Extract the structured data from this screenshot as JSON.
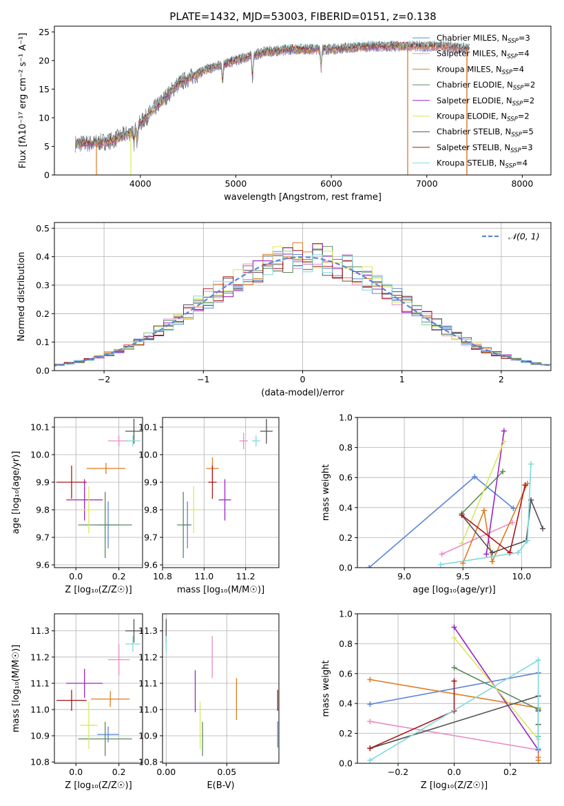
{
  "title": "PLATE=1432, MJD=53003, FIBERID=0151, z=0.138",
  "colors": {
    "Chabrier MILES": "#5b84d9",
    "Salpeter MILES": "#e88cc4",
    "Kroupa MILES": "#de7a1e",
    "Chabrier ELODIE": "#5a8a5a",
    "Salpeter ELODIE": "#9a22c6",
    "Kroupa ELODIE": "#d8e85a",
    "Chabrier STELIB": "#505050",
    "Salpeter STELIB": "#a81515",
    "Kroupa STELIB": "#7fd8dc"
  },
  "chart_data": [
    {
      "id": "spectrum",
      "type": "line",
      "xlabel": "wavelength [Angstrom, rest frame]",
      "ylabel": "Flux [fλ10⁻¹⁷ erg cm⁻² s⁻¹ A⁻¹]",
      "xlim": [
        3100,
        8300
      ],
      "ylim": [
        0,
        26
      ],
      "xticks": [
        4000,
        5000,
        6000,
        7000,
        8000
      ],
      "yticks": [
        0,
        5,
        10,
        15,
        20,
        25
      ],
      "legend_position": "upper right",
      "legend": [
        {
          "label": "Chabrier MILES, N_SSP=3",
          "base": "Chabrier MILES, N",
          "sub": "SSP",
          "tail": "=3",
          "model": "Chabrier MILES"
        },
        {
          "label": "Salpeter MILES, N_SSP=4",
          "base": "Salpeter MILES, N",
          "sub": "SSP",
          "tail": "=4",
          "model": "Salpeter MILES"
        },
        {
          "label": "Kroupa MILES, N_SSP=4",
          "base": "Kroupa MILES, N",
          "sub": "SSP",
          "tail": "=4",
          "model": "Kroupa MILES"
        },
        {
          "label": "Chabrier ELODIE, N_SSP=2",
          "base": "Chabrier ELODIE, N",
          "sub": "SSP",
          "tail": "=2",
          "model": "Chabrier ELODIE"
        },
        {
          "label": "Salpeter ELODIE, N_SSP=2",
          "base": "Salpeter ELODIE, N",
          "sub": "SSP",
          "tail": "=2",
          "model": "Salpeter ELODIE"
        },
        {
          "label": "Kroupa ELODIE, N_SSP=2",
          "base": "Kroupa ELODIE, N",
          "sub": "SSP",
          "tail": "=2",
          "model": "Kroupa ELODIE"
        },
        {
          "label": "Chabrier STELIB, N_SSP=5",
          "base": "Chabrier STELIB, N",
          "sub": "SSP",
          "tail": "=5",
          "model": "Chabrier STELIB"
        },
        {
          "label": "Salpeter STELIB, N_SSP=3",
          "base": "Salpeter STELIB, N",
          "sub": "SSP",
          "tail": "=3",
          "model": "Salpeter STELIB"
        },
        {
          "label": "Kroupa STELIB, N_SSP=4",
          "base": "Kroupa STELIB, N",
          "sub": "SSP",
          "tail": "=4",
          "model": "Kroupa STELIB"
        }
      ],
      "continuum_shape": {
        "x": [
          3320,
          3500,
          3700,
          3900,
          4000,
          4200,
          4400,
          4700,
          5000,
          5300,
          5600,
          6000,
          6400,
          6800,
          7200,
          7450
        ],
        "y": [
          5.5,
          5.5,
          6.0,
          7.5,
          9.0,
          12.5,
          16.0,
          18.5,
          20.0,
          21.5,
          22.0,
          22.0,
          22.5,
          22.5,
          22.5,
          22.0
        ]
      },
      "absorption_features": [
        {
          "x": 3933,
          "depth": 2.5
        },
        {
          "x": 3968,
          "depth": 2.5
        },
        {
          "x": 4861,
          "depth": 3.0
        },
        {
          "x": 5175,
          "depth": 4.0
        },
        {
          "x": 5893,
          "depth": 3.5
        }
      ],
      "model_drops": [
        {
          "model": "Kroupa MILES",
          "x": 3540
        },
        {
          "model": "Kroupa ELODIE",
          "x": 3900
        },
        {
          "model": "Salpeter MILES",
          "x": 6800
        },
        {
          "model": "Kroupa MILES",
          "x": 6800
        },
        {
          "model": "Salpeter STELIB",
          "x": 7420
        },
        {
          "model": "Kroupa MILES",
          "x": 7420
        }
      ],
      "model_end_x": {
        "MILES": 7400,
        "ELODIE": 6800,
        "STELIB": 7450
      }
    },
    {
      "id": "residuals",
      "type": "histogram",
      "xlabel": "(data-model)/error",
      "ylabel": "Normed distribution",
      "xlim": [
        -2.5,
        2.5
      ],
      "ylim": [
        0,
        0.52
      ],
      "xticks": [
        -2,
        -1,
        0,
        1,
        2
      ],
      "yticks": [
        0.0,
        0.1,
        0.2,
        0.3,
        0.4,
        0.5
      ],
      "bin_width": 0.1,
      "grid": true,
      "reference": {
        "label": "𝒩(0, 1)",
        "mu": 0,
        "sigma": 1,
        "color": "#5b84d9",
        "style": "dashed"
      },
      "legend_position": "upper right"
    },
    {
      "id": "age_vs_Z",
      "type": "errorbar",
      "xlabel": "Z [log₁₀(Z/Z☉)]",
      "ylabel": "age  [log₁₀(age/yr)]",
      "xlim": [
        -0.1,
        0.31
      ],
      "ylim": [
        9.59,
        10.135
      ],
      "xticks": [
        0.0,
        0.2
      ],
      "yticks": [
        9.6,
        9.7,
        9.8,
        9.9,
        10.0,
        10.1
      ],
      "grid": true,
      "points": [
        {
          "model": "Chabrier MILES",
          "x": 0.15,
          "y": 9.745,
          "xerr": 0.05,
          "yerr": 0.085
        },
        {
          "model": "Salpeter MILES",
          "x": 0.2,
          "y": 10.05,
          "xerr": 0.05,
          "yerr": 0.02
        },
        {
          "model": "Kroupa MILES",
          "x": 0.14,
          "y": 9.95,
          "xerr": 0.09,
          "yerr": 0.02
        },
        {
          "model": "Chabrier ELODIE",
          "x": 0.136,
          "y": 9.745,
          "xerr": 0.125,
          "yerr": 0.12
        },
        {
          "model": "Salpeter ELODIE",
          "x": 0.04,
          "y": 9.836,
          "xerr": 0.085,
          "yerr": 0.075
        },
        {
          "model": "Kroupa ELODIE",
          "x": 0.06,
          "y": 9.8,
          "xerr": 0.04,
          "yerr": 0.085
        },
        {
          "model": "Chabrier STELIB",
          "x": 0.27,
          "y": 10.085,
          "xerr": 0.04,
          "yerr": 0.045
        },
        {
          "model": "Salpeter STELIB",
          "x": -0.02,
          "y": 9.9,
          "xerr": 0.07,
          "yerr": 0.06
        },
        {
          "model": "Kroupa STELIB",
          "x": 0.265,
          "y": 10.05,
          "xerr": 0.035,
          "yerr": 0.02
        }
      ]
    },
    {
      "id": "age_vs_mass",
      "type": "errorbar",
      "xlabel": "mass [log₁₀(M/M☉)]",
      "ylabel": "",
      "xlim": [
        10.8,
        11.36
      ],
      "ylim": [
        9.59,
        10.135
      ],
      "xticks": [
        10.8,
        11.0,
        11.2
      ],
      "yticks": [
        9.6,
        9.7,
        9.8,
        9.9,
        10.0,
        10.1
      ],
      "grid": true,
      "points": [
        {
          "model": "Chabrier MILES",
          "x": 10.92,
          "y": 9.745,
          "xerr": 0.02,
          "yerr": 0.085
        },
        {
          "model": "Salpeter MILES",
          "x": 11.19,
          "y": 10.05,
          "xerr": 0.02,
          "yerr": 0.03
        },
        {
          "model": "Kroupa MILES",
          "x": 11.04,
          "y": 9.95,
          "xerr": 0.03,
          "yerr": 0.04
        },
        {
          "model": "Chabrier ELODIE",
          "x": 10.9,
          "y": 9.745,
          "xerr": 0.03,
          "yerr": 0.12
        },
        {
          "model": "Salpeter ELODIE",
          "x": 11.1,
          "y": 9.836,
          "xerr": 0.03,
          "yerr": 0.075
        },
        {
          "model": "Kroupa ELODIE",
          "x": 10.95,
          "y": 9.8,
          "xerr": 0.02,
          "yerr": 0.085
        },
        {
          "model": "Chabrier STELIB",
          "x": 11.3,
          "y": 10.085,
          "xerr": 0.03,
          "yerr": 0.045
        },
        {
          "model": "Salpeter STELIB",
          "x": 11.04,
          "y": 9.9,
          "xerr": 0.02,
          "yerr": 0.06
        },
        {
          "model": "Kroupa STELIB",
          "x": 11.25,
          "y": 10.05,
          "xerr": 0.02,
          "yerr": 0.02
        }
      ]
    },
    {
      "id": "weight_vs_age",
      "type": "line",
      "xlabel": "age  [log₁₀(age/yr)]",
      "ylabel": "mass weight",
      "xlim": [
        8.6,
        10.25
      ],
      "ylim": [
        0,
        1.0
      ],
      "xticks": [
        9.0,
        9.5,
        10.0
      ],
      "yticks": [
        0.0,
        0.2,
        0.4,
        0.6,
        0.8,
        1.0
      ],
      "grid": true,
      "series": [
        {
          "model": "Chabrier MILES",
          "x": [
            8.7,
            9.6,
            9.93
          ],
          "y": [
            0.0,
            0.605,
            0.395
          ]
        },
        {
          "model": "Salpeter MILES",
          "x": [
            9.32,
            9.92
          ],
          "y": [
            0.09,
            0.3
          ]
        },
        {
          "model": "Kroupa MILES",
          "x": [
            9.5,
            9.68,
            9.75,
            10.05
          ],
          "y": [
            0.03,
            0.38,
            0.04,
            0.56
          ]
        },
        {
          "model": "Chabrier ELODIE",
          "x": [
            9.49,
            9.84
          ],
          "y": [
            0.36,
            0.64
          ]
        },
        {
          "model": "Salpeter ELODIE",
          "x": [
            9.7,
            9.85
          ],
          "y": [
            0.09,
            0.91
          ]
        },
        {
          "model": "Kroupa ELODIE",
          "x": [
            9.49,
            9.85
          ],
          "y": [
            0.16,
            0.84
          ]
        },
        {
          "model": "Chabrier STELIB",
          "x": [
            9.49,
            9.75,
            10.04,
            10.08,
            10.18
          ],
          "y": [
            0.35,
            0.1,
            0.18,
            0.45,
            0.26
          ]
        },
        {
          "model": "Salpeter STELIB",
          "x": [
            9.49,
            9.9,
            10.03
          ],
          "y": [
            0.35,
            0.1,
            0.55
          ]
        },
        {
          "model": "Kroupa STELIB",
          "x": [
            9.31,
            9.97,
            10.05,
            10.08
          ],
          "y": [
            0.02,
            0.1,
            0.18,
            0.69
          ]
        }
      ]
    },
    {
      "id": "mass_vs_Z",
      "type": "errorbar",
      "xlabel": "Z [log₁₀(Z/Z☉)]",
      "ylabel": "mass [log₁₀(M/M☉)]",
      "xlim": [
        -0.1,
        0.31
      ],
      "ylim": [
        10.795,
        11.365
      ],
      "xticks": [
        0.0,
        0.2
      ],
      "yticks": [
        10.8,
        10.9,
        11.0,
        11.1,
        11.2,
        11.3
      ],
      "grid": true,
      "points": [
        {
          "model": "Chabrier MILES",
          "x": 0.15,
          "y": 10.905,
          "xerr": 0.05,
          "yerr": 0.03
        },
        {
          "model": "Salpeter MILES",
          "x": 0.2,
          "y": 11.19,
          "xerr": 0.05,
          "yerr": 0.06
        },
        {
          "model": "Kroupa MILES",
          "x": 0.16,
          "y": 11.04,
          "xerr": 0.09,
          "yerr": 0.03
        },
        {
          "model": "Chabrier ELODIE",
          "x": 0.136,
          "y": 10.888,
          "xerr": 0.125,
          "yerr": 0.065
        },
        {
          "model": "Salpeter ELODIE",
          "x": 0.04,
          "y": 11.1,
          "xerr": 0.085,
          "yerr": 0.055
        },
        {
          "model": "Kroupa ELODIE",
          "x": 0.06,
          "y": 10.94,
          "xerr": 0.04,
          "yerr": 0.09
        },
        {
          "model": "Chabrier STELIB",
          "x": 0.27,
          "y": 11.3,
          "xerr": 0.04,
          "yerr": 0.045
        },
        {
          "model": "Salpeter STELIB",
          "x": -0.02,
          "y": 11.035,
          "xerr": 0.07,
          "yerr": 0.04
        },
        {
          "model": "Kroupa STELIB",
          "x": 0.265,
          "y": 11.25,
          "xerr": 0.035,
          "yerr": 0.03
        }
      ]
    },
    {
      "id": "mass_vs_EBV",
      "type": "errorbar",
      "xlabel": "E(B-V)",
      "ylabel": "",
      "xlim": [
        -0.003,
        0.093
      ],
      "ylim": [
        10.795,
        11.365
      ],
      "xticks": [
        0.0,
        0.05
      ],
      "yticks": [
        10.8,
        10.9,
        11.0,
        11.1,
        11.2,
        11.3
      ],
      "grid": true,
      "points": [
        {
          "model": "Chabrier MILES",
          "x": 0.092,
          "y": 10.905,
          "xerr": 0,
          "yerr": 0.05
        },
        {
          "model": "Salpeter MILES",
          "x": 0.038,
          "y": 11.2,
          "xerr": 0,
          "yerr": 0.08
        },
        {
          "model": "Kroupa MILES",
          "x": 0.058,
          "y": 11.04,
          "xerr": 0,
          "yerr": 0.08
        },
        {
          "model": "Chabrier ELODIE",
          "x": 0.03,
          "y": 10.888,
          "xerr": 0,
          "yerr": 0.065
        },
        {
          "model": "Salpeter ELODIE",
          "x": 0.024,
          "y": 11.07,
          "xerr": 0,
          "yerr": 0.08
        },
        {
          "model": "Kroupa ELODIE",
          "x": 0.028,
          "y": 10.94,
          "xerr": 0,
          "yerr": 0.09
        },
        {
          "model": "Chabrier STELIB",
          "x": 0.0,
          "y": 11.3,
          "xerr": 0,
          "yerr": 0.045
        },
        {
          "model": "Salpeter STELIB",
          "x": 0.092,
          "y": 11.035,
          "xerr": 0,
          "yerr": 0.04
        },
        {
          "model": "Kroupa STELIB",
          "x": 0.0,
          "y": 11.25,
          "xerr": 0,
          "yerr": 0.03
        }
      ]
    },
    {
      "id": "weight_vs_Z",
      "type": "line",
      "xlabel": "Z [log₁₀(Z/Z☉)]",
      "ylabel": "mass weight",
      "xlim": [
        -0.345,
        0.345
      ],
      "ylim": [
        0,
        1.0
      ],
      "xticks": [
        -0.2,
        0.0,
        0.2
      ],
      "yticks": [
        0.0,
        0.2,
        0.4,
        0.6,
        0.8,
        1.0
      ],
      "grid": true,
      "series": [
        {
          "model": "Chabrier MILES",
          "x": [
            -0.3,
            0.3
          ],
          "y": [
            0.395,
            0.605
          ]
        },
        {
          "model": "Salpeter MILES",
          "x": [
            -0.3,
            0.3
          ],
          "y": [
            0.28,
            0.09
          ]
        },
        {
          "model": "Kroupa MILES",
          "x": [
            -0.3,
            0.3,
            0.3,
            0.3
          ],
          "y": [
            0.56,
            0.37,
            0.04,
            0.02
          ]
        },
        {
          "model": "Chabrier ELODIE",
          "x": [
            0.0,
            0.3
          ],
          "y": [
            0.64,
            0.36
          ]
        },
        {
          "model": "Salpeter ELODIE",
          "x": [
            0.0,
            0.3
          ],
          "y": [
            0.91,
            0.09
          ]
        },
        {
          "model": "Kroupa ELODIE",
          "x": [
            0.0,
            0.3
          ],
          "y": [
            0.84,
            0.16
          ]
        },
        {
          "model": "Chabrier STELIB",
          "x": [
            -0.3,
            0.3,
            0.3,
            0.3,
            0.3
          ],
          "y": [
            0.1,
            0.45,
            0.35,
            0.26,
            0.18
          ]
        },
        {
          "model": "Salpeter STELIB",
          "x": [
            -0.3,
            0.0,
            0.0
          ],
          "y": [
            0.1,
            0.35,
            0.55
          ]
        },
        {
          "model": "Kroupa STELIB",
          "x": [
            -0.3,
            0.3,
            0.3,
            0.3
          ],
          "y": [
            0.02,
            0.69,
            0.1,
            0.18
          ]
        }
      ]
    }
  ]
}
